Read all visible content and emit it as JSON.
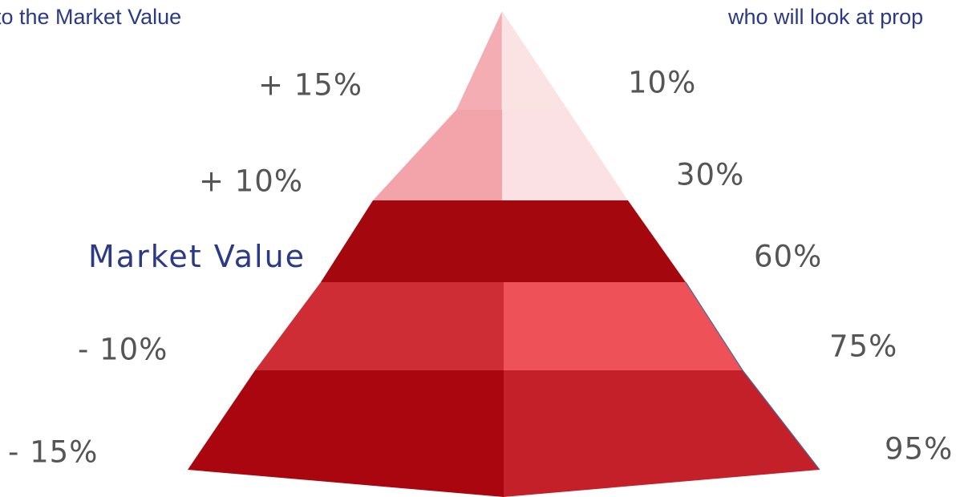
{
  "header": {
    "left_text": "to the Market Value",
    "right_text": "who will look at prop"
  },
  "levels": [
    {
      "price": "+ 15%",
      "buyers": "10%"
    },
    {
      "price": "+ 10%",
      "buyers": "30%"
    },
    {
      "price": "Market Value",
      "buyers": "60%"
    },
    {
      "price": "- 10%",
      "buyers": "75%"
    },
    {
      "price": "- 15%",
      "buyers": "95%"
    }
  ],
  "colors": {
    "tier1_left": "#f4aeb3",
    "tier1_right": "#fbe3e4",
    "tier2_left": "#f3a4aa",
    "tier2_right": "#fbe1e3",
    "tier3_left": "#a5070f",
    "tier3_right": "#a3070e",
    "tier4_left": "#cf2d35",
    "tier4_right": "#ee5157",
    "tier5_left": "#a9060f",
    "tier5_right": "#c4202a",
    "label_accent": "#2b3a86",
    "label_text": "#555555"
  }
}
